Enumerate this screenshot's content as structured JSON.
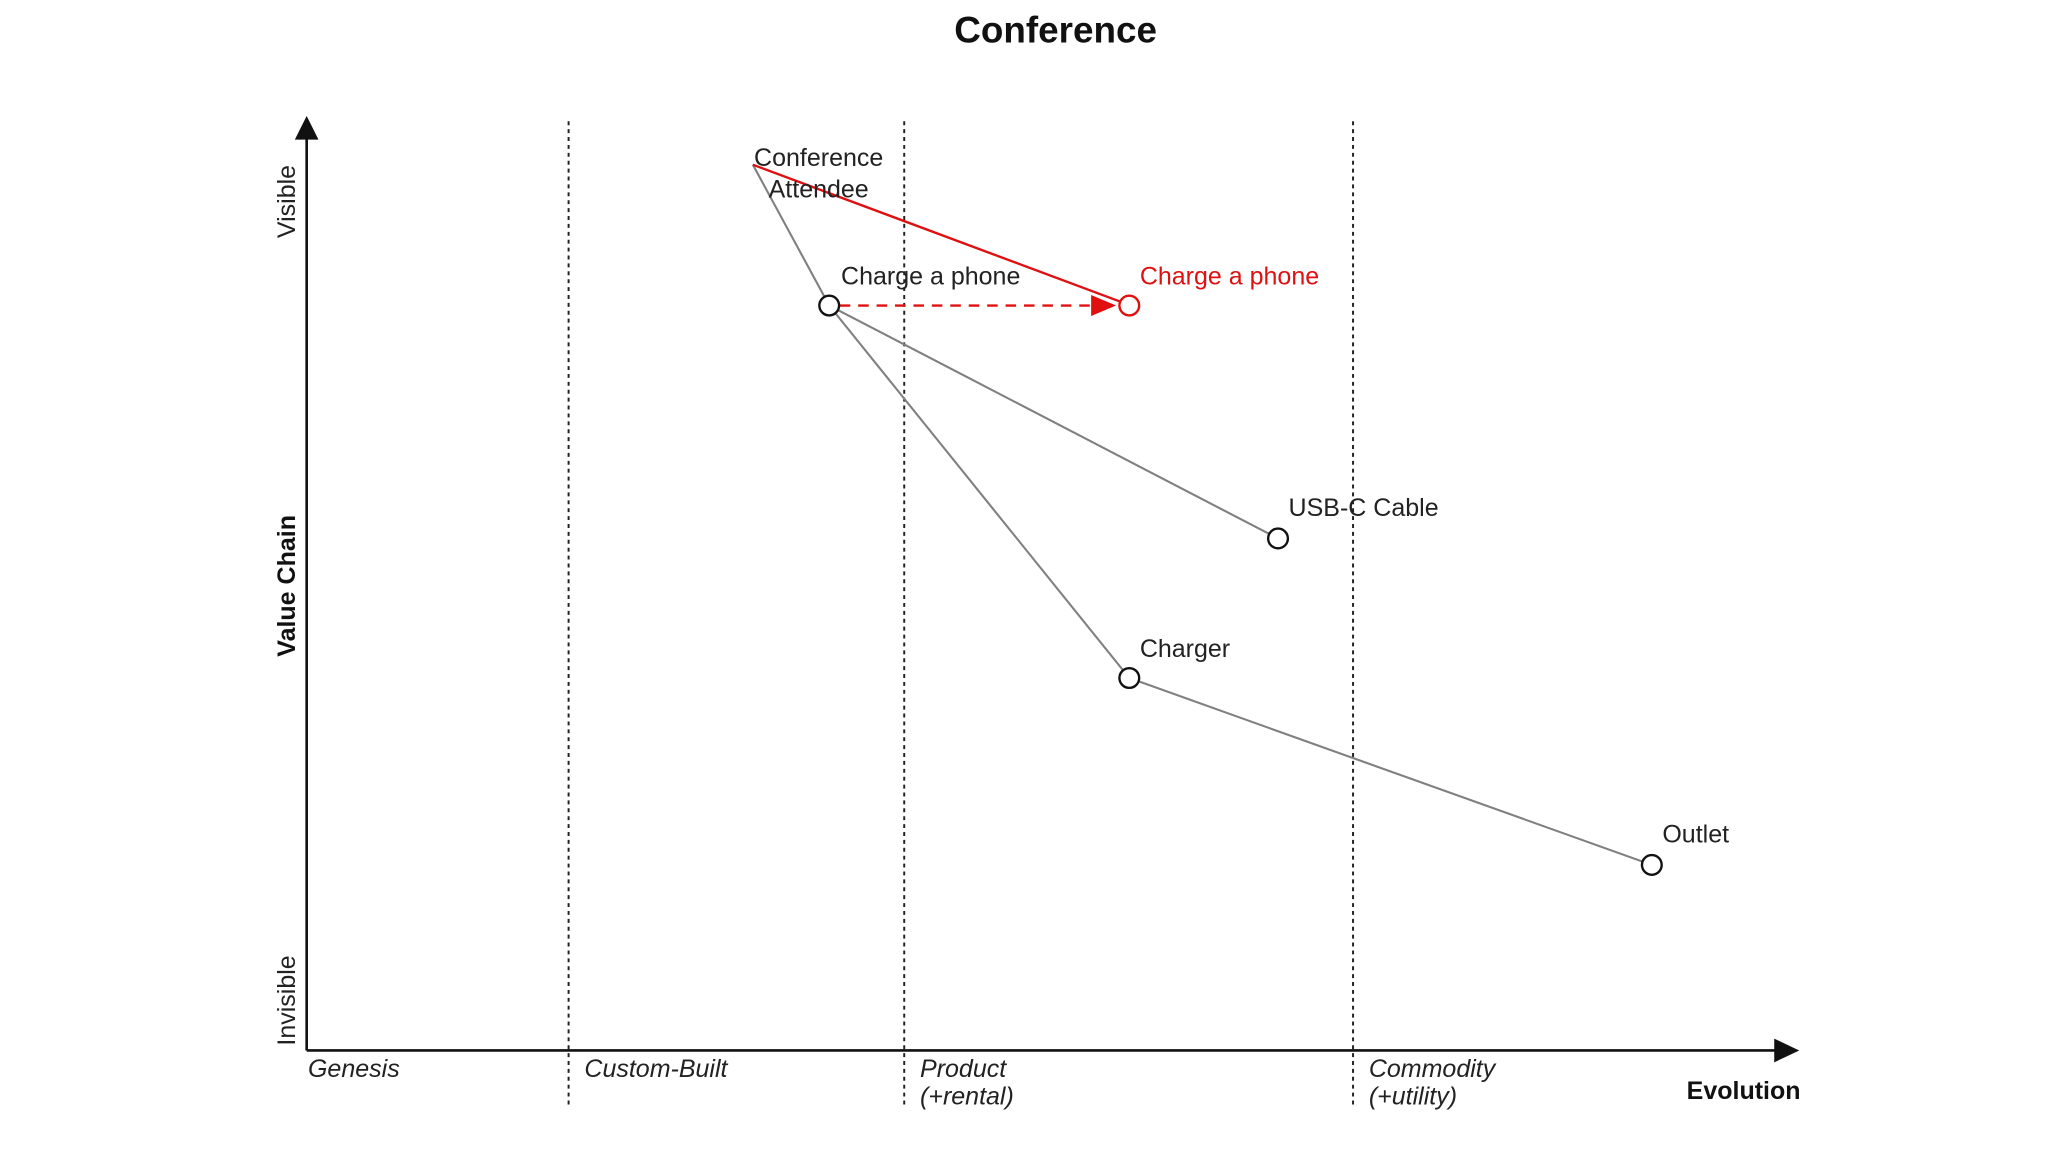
{
  "title": "Conference",
  "y_axis": {
    "label": "Value Chain",
    "top": "Visible",
    "bottom": "Invisible"
  },
  "x_axis": {
    "label": "Evolution",
    "stages": [
      [
        "Genesis"
      ],
      [
        "Custom-Built"
      ],
      [
        "Product",
        "(+rental)"
      ],
      [
        "Commodity",
        "(+utility)"
      ]
    ]
  },
  "nodes": [
    {
      "lines": [
        "Conference",
        "Attendee"
      ]
    },
    {
      "lines": [
        "Charge a phone"
      ]
    },
    {
      "lines": [
        "Charge a phone"
      ]
    },
    {
      "lines": [
        "USB-C Cable"
      ]
    },
    {
      "lines": [
        "Charger"
      ]
    },
    {
      "lines": [
        "Outlet"
      ]
    }
  ]
}
